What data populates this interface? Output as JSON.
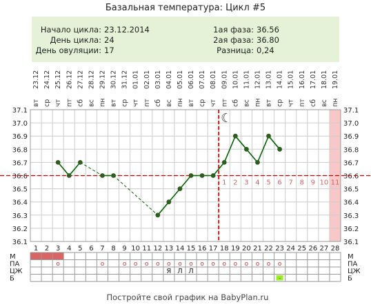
{
  "title": "Базальная температура: Цикл #5",
  "info": {
    "start_label": "Начало цикла:",
    "start_value": "23.12.2014",
    "day_label": "День цикла:",
    "day_value": "24",
    "ovulation_label": "День овуляции:",
    "ovulation_value": "17",
    "phase1_label": "1ая фаза:",
    "phase1_value": "36.56",
    "phase2_label": "2ая фаза:",
    "phase2_value": "36.80",
    "diff_label": "Разница:",
    "diff_value": "0,24"
  },
  "footer": "Постройте свой график на BabyPlan.ru",
  "colors": {
    "line": "#006600",
    "dot": "#2e5e1e",
    "coverline": "#cc0000",
    "ovulation_line": "#cc0000",
    "info_bg": "#e6f2d8",
    "future_band": "#f8c8c8",
    "m_cell": "#d96464",
    "b_mark": "#99ee22",
    "phase2_labels": "#cc6666",
    "grid": "#cccccc"
  },
  "moon_glyph": "☾",
  "chart_data": {
    "type": "line",
    "x": [
      1,
      2,
      3,
      4,
      5,
      6,
      7,
      8,
      9,
      10,
      11,
      12,
      13,
      14,
      15,
      16,
      17,
      18,
      19,
      20,
      21,
      22,
      23,
      24,
      25,
      26,
      27,
      28
    ],
    "weekdays": [
      "вт",
      "ср",
      "чт",
      "пт",
      "сб",
      "вс",
      "пн",
      "вт",
      "ср",
      "чт",
      "пт",
      "сб",
      "вс",
      "пн",
      "вт",
      "ср",
      "чт",
      "пт",
      "сб",
      "вс",
      "пн",
      "вт",
      "ср",
      "чт",
      "пт",
      "сб",
      "вс",
      "пн"
    ],
    "dates": [
      "23.12",
      "24.12",
      "25.12",
      "26.12",
      "27.12",
      "28.12",
      "29.12",
      "30.12",
      "31.12",
      "01.01",
      "02.01",
      "03.01",
      "04.01",
      "05.01",
      "06.01",
      "07.01",
      "08.01",
      "09.01",
      "10.01",
      "11.01",
      "12.01",
      "13.01",
      "14.01",
      "15.01",
      "16.01",
      "17.01",
      "18.01",
      "19.01"
    ],
    "y_ticks": [
      "37.1",
      "37.0",
      "36.9",
      "36.8",
      "36.7",
      "36.6",
      "36.5",
      "36.4",
      "36.3",
      "36.2",
      "36.1"
    ],
    "ylim": [
      36.1,
      37.1
    ],
    "series": [
      {
        "values": [
          null,
          null,
          36.7,
          36.6,
          36.7,
          null,
          36.6,
          36.6,
          null,
          null,
          null,
          36.3,
          36.4,
          36.5,
          36.6,
          36.6,
          36.6,
          36.7,
          36.9,
          36.8,
          36.7,
          36.9,
          36.8,
          null,
          null,
          null,
          null,
          null
        ]
      }
    ],
    "solid_segments": [
      [
        3,
        4
      ],
      [
        4,
        5
      ],
      [
        7,
        8
      ],
      [
        12,
        13
      ],
      [
        13,
        14
      ],
      [
        14,
        15
      ],
      [
        15,
        16
      ],
      [
        16,
        17
      ],
      [
        17,
        18
      ],
      [
        18,
        19
      ],
      [
        19,
        20
      ],
      [
        20,
        21
      ],
      [
        21,
        22
      ],
      [
        22,
        23
      ]
    ],
    "dashed_segments": [
      [
        5,
        7
      ],
      [
        8,
        12
      ]
    ],
    "coverline": 36.6,
    "ovulation_day": 17,
    "moon_day": 18,
    "future_from_day": 28,
    "phase2_day_numbers": [
      "1",
      "2",
      "3",
      "4",
      "5",
      "6",
      "7",
      "8",
      "9",
      "10",
      "11"
    ],
    "rows": [
      {
        "label": "М",
        "label_right": "М",
        "cells": {
          "1": "fill",
          "2": "fill",
          "3": "fill"
        }
      },
      {
        "label": "ПА",
        "label_right": "ПА",
        "cells": {
          "3": "о",
          "7": "о",
          "9": "о",
          "10": "о",
          "11": "о",
          "12": "о",
          "13": "о",
          "14": "о",
          "15": "о",
          "16": "о",
          "17": "о",
          "18": "о",
          "19": "о",
          "20": "о",
          "21": "о",
          "22": "о",
          "23": "о"
        }
      },
      {
        "label": "ЦЖ",
        "label_right": "ЦЖ",
        "cells": {
          "13": "Я",
          "14": "Л",
          "15": "Л"
        }
      },
      {
        "label": "Б",
        "label_right": "Б",
        "cells": {
          "23": "mark"
        }
      }
    ]
  }
}
